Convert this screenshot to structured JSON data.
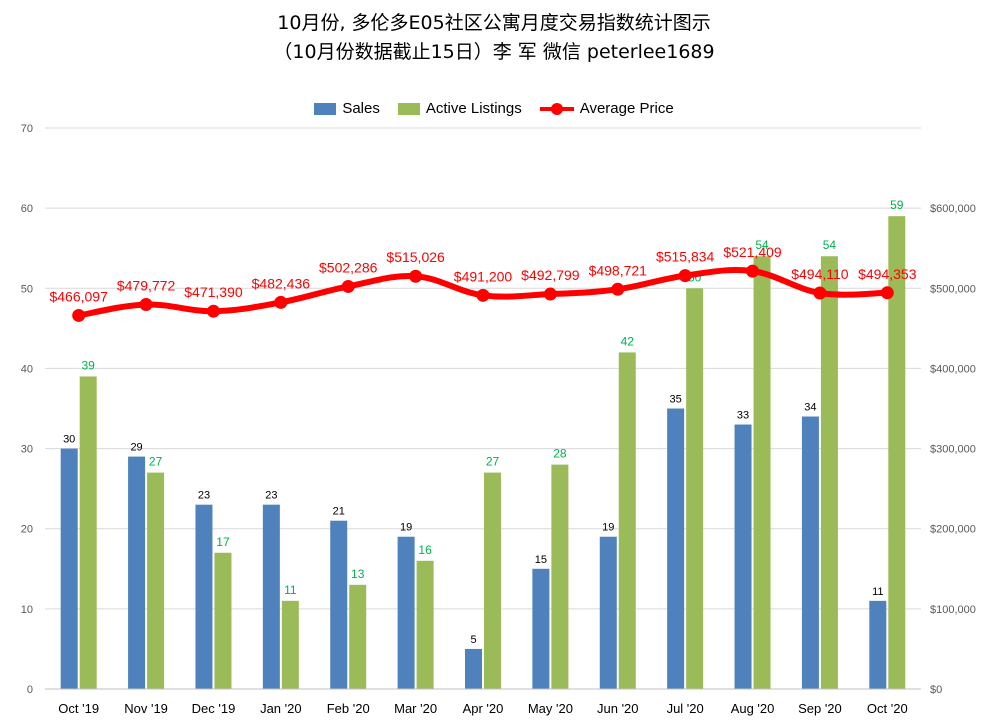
{
  "chart_data": {
    "type": "bar",
    "title": "10月份, 多伦多E05社区公寓月度交易指数统计图示",
    "subtitle": "（10月份数据截止15日）李 军  微信  peterlee1689",
    "categories": [
      "Oct '19",
      "Nov '19",
      "Dec '19",
      "Jan '20",
      "Feb '20",
      "Mar '20",
      "Apr '20",
      "May '20",
      "Jun '20",
      "Jul '20",
      "Aug '20",
      "Sep '20",
      "Oct '20"
    ],
    "series": [
      {
        "name": "Sales",
        "type": "bar",
        "axis": "left",
        "color": "#4f81bd",
        "values": [
          30,
          29,
          23,
          23,
          21,
          19,
          5,
          15,
          19,
          35,
          33,
          34,
          11
        ]
      },
      {
        "name": "Active Listings",
        "type": "bar",
        "axis": "left",
        "color": "#9bbb59",
        "values": [
          39,
          27,
          17,
          11,
          13,
          16,
          27,
          28,
          42,
          50,
          54,
          54,
          59
        ]
      },
      {
        "name": "Average Price",
        "type": "line",
        "axis": "right",
        "color": "#ff0000",
        "values": [
          466097,
          479772,
          471390,
          482436,
          502286,
          515026,
          491200,
          492799,
          498721,
          515834,
          521409,
          494110,
          494353
        ],
        "labels": [
          "$466,097",
          "$479,772",
          "$471,390",
          "$482,436",
          "$502,286",
          "$515,026",
          "$491,200",
          "$492,799",
          "$498,721",
          "$515,834",
          "$521,409",
          "$494,110",
          "$494,353"
        ]
      }
    ],
    "y_left": {
      "min": 0,
      "max": 70,
      "ticks": [
        "0",
        "10",
        "20",
        "30",
        "40",
        "50",
        "60",
        "70"
      ]
    },
    "y_right": {
      "min": 0,
      "max": 700000,
      "ticks": [
        "$0",
        "$100,000",
        "$200,000",
        "$300,000",
        "$400,000",
        "$500,000",
        "$600,000"
      ]
    },
    "grid": true,
    "legend_position": "top-center",
    "label_colors": {
      "sales": "#000000",
      "listings": "#00b050",
      "price": "#ff0000"
    }
  }
}
